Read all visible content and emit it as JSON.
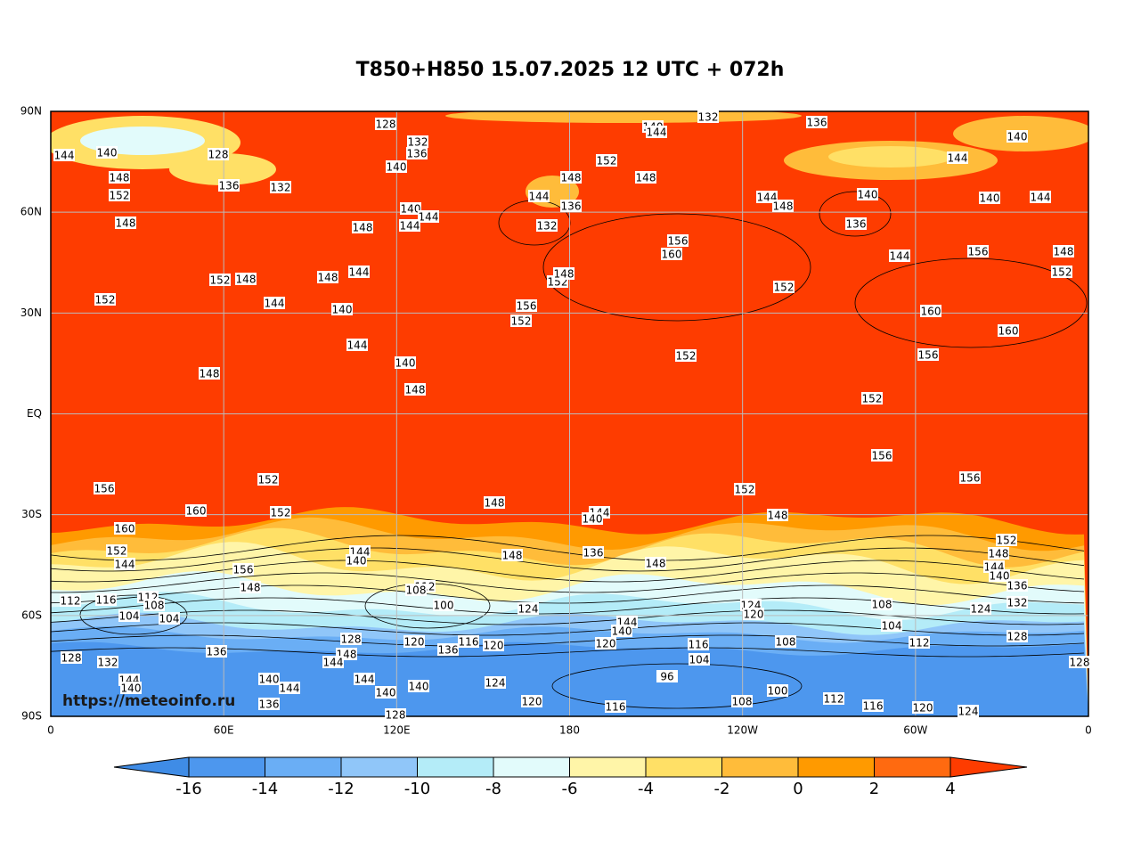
{
  "title": "T850+H850 15.07.2025 12 UTC + 072h",
  "map": {
    "lat_labels": [
      "90N",
      "60N",
      "30N",
      "EQ",
      "30S",
      "60S",
      "90S"
    ],
    "lon_labels": [
      "0",
      "60E",
      "120E",
      "180",
      "120W",
      "60W",
      "0"
    ],
    "watermark": "https://meteoinfo.ru",
    "contour_labels": [
      128,
      140,
      144,
      132,
      136,
      140,
      144,
      140,
      128,
      132,
      136,
      140,
      152,
      148,
      148,
      144,
      148,
      136,
      132,
      152,
      148,
      144,
      136,
      132,
      140,
      144,
      144,
      148,
      144,
      148,
      140,
      136,
      140,
      144,
      156,
      160,
      156,
      148,
      152,
      144,
      152,
      148,
      148,
      144,
      152,
      148,
      152,
      152,
      144,
      140,
      156,
      152,
      160,
      160,
      144,
      140,
      148,
      148,
      152,
      156,
      152,
      156,
      152,
      156,
      156,
      152,
      160,
      152,
      148,
      144,
      140,
      148,
      160,
      152,
      144,
      144,
      140,
      156,
      148,
      148,
      136,
      148,
      152,
      148,
      144,
      140,
      136,
      132,
      112,
      116,
      112,
      108,
      104,
      104,
      112,
      108,
      100,
      124,
      124,
      120,
      108,
      104,
      112,
      124,
      128,
      144,
      140,
      120,
      136,
      128,
      136,
      116,
      120,
      120,
      116,
      104,
      108,
      128,
      132,
      148,
      144,
      96,
      144,
      140,
      140,
      144,
      144,
      140,
      140,
      124,
      100,
      120,
      116,
      108,
      112,
      116,
      120,
      124,
      136,
      128,
      128
    ]
  },
  "colorbar": {
    "ticks": [
      -16,
      -14,
      -12,
      -10,
      -8,
      -6,
      -4,
      -2,
      0,
      2,
      4
    ],
    "colors": [
      "#3f8ce6",
      "#4d97ee",
      "#6aaef5",
      "#90c6f9",
      "#b4ecf8",
      "#e2fbfb",
      "#fff5a8",
      "#ffe066",
      "#ffbc3a",
      "#ff9a00",
      "#ff6a10",
      "#fe3c00"
    ]
  }
}
